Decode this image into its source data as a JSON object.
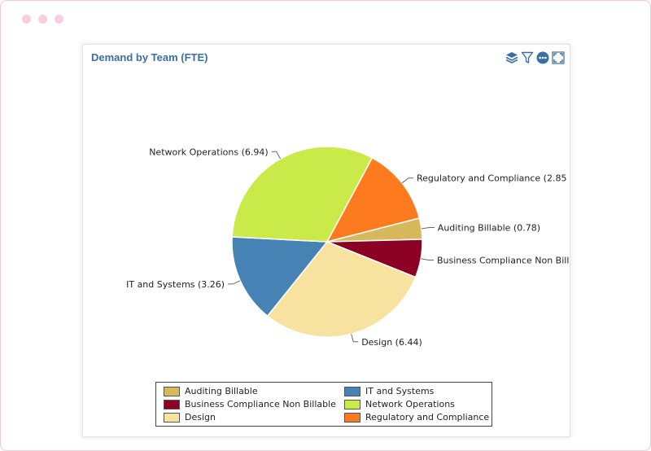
{
  "panel": {
    "title": "Demand by Team (FTE)"
  },
  "toolbar": [
    "layers-icon",
    "filter-icon",
    "more-icon",
    "expand-icon"
  ],
  "chart_data": {
    "type": "pie",
    "title": "Demand by Team (FTE)",
    "slices": [
      {
        "name": "Auditing Billable",
        "value": 0.78,
        "color": "#d8b85c",
        "label": "Auditing Billable (0.78)"
      },
      {
        "name": "Business Compliance Non Billable",
        "value": 1.4,
        "color": "#8c0024",
        "label": "Business Compliance Non Billable"
      },
      {
        "name": "Design",
        "value": 6.44,
        "color": "#f7e2a0",
        "label": "Design (6.44)"
      },
      {
        "name": "IT and Systems",
        "value": 3.26,
        "color": "#4682b4",
        "label": "IT and Systems (3.26)"
      },
      {
        "name": "Network Operations",
        "value": 6.94,
        "color": "#c9ea48",
        "label": "Network Operations (6.94)"
      },
      {
        "name": "Regulatory and Compliance",
        "value": 2.85,
        "color": "#fd7a1f",
        "label": "Regulatory and Compliance (2.85"
      }
    ],
    "legend": {
      "position": "bottom",
      "entries": [
        "Auditing Billable",
        "IT and Systems",
        "Business Compliance Non Billable",
        "Network Operations",
        "Design",
        "Regulatory and Compliance"
      ]
    }
  }
}
